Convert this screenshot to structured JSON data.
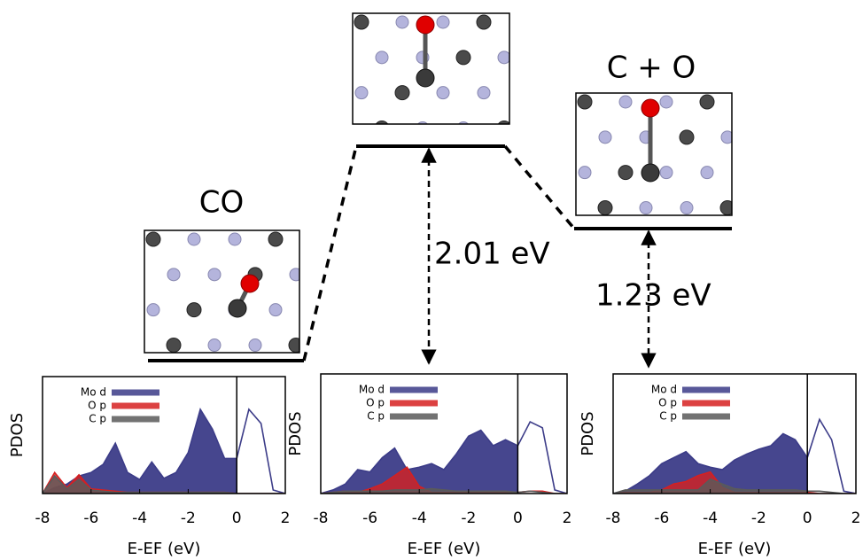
{
  "diagram": {
    "initial": "CO",
    "final": "C + O",
    "barriers": [
      "2.01 eV",
      "1.23 eV"
    ]
  },
  "chart_data": [
    {
      "type": "area",
      "ylabel": "PDOS",
      "xlabel": "E-EF (eV)",
      "xlim": [
        -8,
        2
      ],
      "xticks": [
        -8,
        -6,
        -4,
        -2,
        0,
        2
      ],
      "ylim": [
        0,
        10
      ],
      "fermi_level": 0,
      "legend": "upper left",
      "x": [
        -8,
        -7.5,
        -7,
        -6.5,
        -6,
        -5.5,
        -5,
        -4.5,
        -4,
        -3.5,
        -3,
        -2.5,
        -2,
        -1.5,
        -1,
        -0.5,
        0,
        0.5,
        1,
        1.5,
        2
      ],
      "series": [
        {
          "name": "Mo d",
          "color": "#3c3c88",
          "values": [
            0,
            0.5,
            0.8,
            1.5,
            1.8,
            2.5,
            4.3,
            1.8,
            1.2,
            2.7,
            1.3,
            1.8,
            3.5,
            7.2,
            5.5,
            3,
            3,
            7.2,
            6,
            0.3,
            0
          ]
        },
        {
          "name": "O p",
          "color": "#d62020",
          "values": [
            0,
            1.8,
            0.5,
            1.6,
            0.4,
            0.3,
            0.2,
            0.1,
            0.1,
            0.1,
            0.1,
            0.1,
            0.1,
            0.1,
            0.1,
            0.1,
            0,
            0,
            0,
            0,
            0
          ]
        },
        {
          "name": "C p",
          "color": "#5a5a5a",
          "values": [
            0,
            1.5,
            0.4,
            1.2,
            0.3,
            0.2,
            0.1,
            0.1,
            0.1,
            0.1,
            0.1,
            0.1,
            0.1,
            0.1,
            0.1,
            0.1,
            0,
            0,
            0,
            0,
            0
          ]
        }
      ]
    },
    {
      "type": "area",
      "ylabel": "PDOS",
      "xlabel": "E-EF (eV)",
      "xlim": [
        -8,
        2
      ],
      "xticks": [
        -8,
        -6,
        -4,
        -2,
        0,
        2
      ],
      "ylim": [
        0,
        10
      ],
      "fermi_level": 0,
      "legend": "upper left",
      "x": [
        -8,
        -7.5,
        -7,
        -6.5,
        -6,
        -5.5,
        -5,
        -4.5,
        -4,
        -3.5,
        -3,
        -2.5,
        -2,
        -1.5,
        -1,
        -0.5,
        0,
        0.5,
        1,
        1.5,
        2
      ],
      "series": [
        {
          "name": "Mo d",
          "color": "#3c3c88",
          "values": [
            0,
            0.3,
            0.8,
            2,
            1.8,
            3,
            3.8,
            2,
            2.2,
            2.5,
            2,
            3.3,
            4.8,
            5.3,
            4,
            4.5,
            4,
            6,
            5.5,
            0.3,
            0
          ]
        },
        {
          "name": "O p",
          "color": "#d62020",
          "values": [
            0,
            0.1,
            0.2,
            0.1,
            0.4,
            0.8,
            1.5,
            2.2,
            0.6,
            0.1,
            0.1,
            0.1,
            0.1,
            0.1,
            0.1,
            0.1,
            0.1,
            0.2,
            0.2,
            0,
            0
          ]
        },
        {
          "name": "C p",
          "color": "#5a5a5a",
          "values": [
            0,
            0.1,
            0.2,
            0.2,
            0.2,
            0.2,
            0.3,
            0.3,
            0.3,
            0.4,
            0.3,
            0.2,
            0.2,
            0.2,
            0.2,
            0.2,
            0.1,
            0.2,
            0.1,
            0,
            0
          ]
        }
      ]
    },
    {
      "type": "area",
      "ylabel": "PDOS",
      "xlabel": "E-EF (eV)",
      "xlim": [
        -8,
        2
      ],
      "xticks": [
        -8,
        -6,
        -4,
        -2,
        0,
        2
      ],
      "ylim": [
        0,
        10
      ],
      "fermi_level": 0,
      "legend": "upper left",
      "x": [
        -8,
        -7.5,
        -7,
        -6.5,
        -6,
        -5.5,
        -5,
        -4.5,
        -4,
        -3.5,
        -3,
        -2.5,
        -2,
        -1.5,
        -1,
        -0.5,
        0,
        0.5,
        1,
        1.5,
        2
      ],
      "series": [
        {
          "name": "Mo d",
          "color": "#3c3c88",
          "values": [
            0,
            0.2,
            0.8,
            1.5,
            2.5,
            3,
            3.5,
            2.5,
            2.2,
            2,
            2.8,
            3.3,
            3.7,
            4,
            5,
            4.5,
            3,
            6.2,
            4.5,
            0.2,
            0
          ]
        },
        {
          "name": "O p",
          "color": "#d62020",
          "values": [
            0,
            0.1,
            0.1,
            0.1,
            0.3,
            0.8,
            1,
            1.5,
            1.8,
            0.5,
            0.1,
            0.1,
            0.1,
            0.1,
            0.1,
            0.1,
            0.1,
            0,
            0,
            0,
            0
          ]
        },
        {
          "name": "C p",
          "color": "#5a5a5a",
          "values": [
            0,
            0.3,
            0.3,
            0.3,
            0.3,
            0.3,
            0.3,
            0.3,
            1.2,
            0.8,
            0.4,
            0.3,
            0.3,
            0.3,
            0.3,
            0.3,
            0.2,
            0.2,
            0.1,
            0,
            0
          ]
        }
      ]
    }
  ]
}
